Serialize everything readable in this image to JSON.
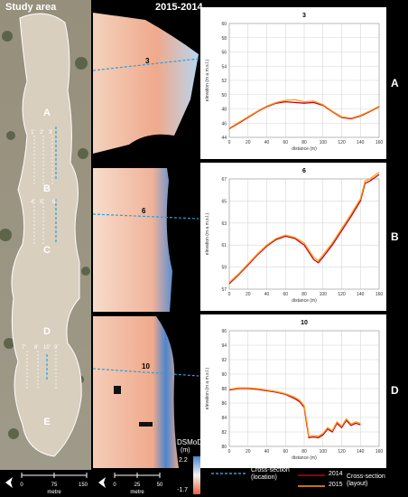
{
  "header": {
    "study_area": "Study area",
    "period": "2015-2014"
  },
  "study_area_labels": {
    "zones": [
      "A",
      "B",
      "C",
      "D",
      "E"
    ],
    "section_ids_b": [
      "1'",
      "2'",
      "3'"
    ],
    "section_ids_c": [
      "4'",
      "5'",
      "6'"
    ],
    "section_ids_d": [
      "7'",
      "8'",
      "10'",
      "9'"
    ]
  },
  "map_labels": {
    "sec3": "3",
    "sec6": "6",
    "sec10": "10"
  },
  "colors": {
    "line_2014": "#c0001a",
    "line_2015": "#ff9c1a",
    "cross_section": "#2aa0d8",
    "dsm_high": "#d6e6f5",
    "dsm_low": "#e8603a"
  },
  "panels": [
    {
      "letter": "A"
    },
    {
      "letter": "B"
    },
    {
      "letter": "D"
    }
  ],
  "chart_data": [
    {
      "type": "line",
      "title": "3",
      "xlabel": "distance (m)",
      "ylabel": "elevation (m a.m.s.l.)",
      "xlim": [
        0,
        160
      ],
      "ylim": [
        44,
        60
      ],
      "xticks": [
        0,
        20,
        40,
        60,
        80,
        100,
        120,
        140,
        160
      ],
      "yticks": [
        44,
        46,
        48,
        50,
        52,
        54,
        56,
        58,
        60
      ],
      "x": [
        0,
        10,
        20,
        30,
        40,
        50,
        60,
        70,
        80,
        90,
        100,
        110,
        120,
        130,
        140,
        150,
        160
      ],
      "series": [
        {
          "name": "2014",
          "values": [
            45.2,
            46.0,
            46.8,
            47.6,
            48.3,
            48.8,
            49.0,
            48.9,
            48.8,
            48.9,
            48.5,
            47.6,
            46.8,
            46.6,
            47.0,
            47.6,
            48.3
          ]
        },
        {
          "name": "2015",
          "values": [
            45.3,
            46.1,
            46.9,
            47.7,
            48.4,
            48.9,
            49.2,
            49.3,
            49.0,
            49.1,
            48.6,
            47.7,
            46.9,
            46.7,
            47.1,
            47.7,
            48.4
          ]
        }
      ]
    },
    {
      "type": "line",
      "title": "6",
      "xlabel": "distance (m)",
      "ylabel": "elevation (m a.m.s.l.)",
      "xlim": [
        0,
        160
      ],
      "ylim": [
        57,
        67
      ],
      "xticks": [
        0,
        20,
        40,
        60,
        80,
        100,
        120,
        140,
        160
      ],
      "yticks": [
        57,
        59,
        61,
        63,
        65,
        67
      ],
      "x": [
        0,
        10,
        20,
        30,
        40,
        50,
        60,
        70,
        80,
        90,
        95,
        100,
        110,
        120,
        130,
        140,
        145,
        150,
        160
      ],
      "series": [
        {
          "name": "2014",
          "values": [
            57.5,
            58.3,
            59.2,
            60.1,
            60.9,
            61.5,
            61.8,
            61.6,
            61.0,
            59.7,
            59.4,
            59.9,
            61.0,
            62.3,
            63.6,
            65.0,
            66.6,
            66.8,
            67.4
          ]
        },
        {
          "name": "2015",
          "values": [
            57.6,
            58.4,
            59.3,
            60.2,
            61.0,
            61.6,
            61.9,
            61.7,
            61.2,
            59.9,
            59.6,
            60.1,
            61.2,
            62.5,
            63.8,
            65.2,
            66.8,
            67.0,
            67.6
          ]
        }
      ]
    },
    {
      "type": "line",
      "title": "10",
      "xlabel": "distance (m)",
      "ylabel": "elevation (m a.m.s.l.)",
      "xlim": [
        0,
        160
      ],
      "ylim": [
        80,
        96
      ],
      "xticks": [
        0,
        20,
        40,
        60,
        80,
        100,
        120,
        140,
        160
      ],
      "yticks": [
        80,
        82,
        84,
        86,
        88,
        90,
        92,
        94,
        96
      ],
      "x": [
        0,
        10,
        20,
        30,
        40,
        50,
        60,
        70,
        75,
        80,
        83,
        85,
        90,
        95,
        100,
        105,
        110,
        115,
        120,
        125,
        130,
        135,
        140
      ],
      "series": [
        {
          "name": "2014",
          "values": [
            87.8,
            88.0,
            88.0,
            87.9,
            87.7,
            87.5,
            87.2,
            86.6,
            86.2,
            85.4,
            82.8,
            81.2,
            81.3,
            81.2,
            81.6,
            82.4,
            82.0,
            83.2,
            82.6,
            83.6,
            82.9,
            83.2,
            83.0
          ]
        },
        {
          "name": "2015",
          "values": [
            87.9,
            88.1,
            88.1,
            88.0,
            87.8,
            87.6,
            87.3,
            86.8,
            86.4,
            85.6,
            83.2,
            81.4,
            81.5,
            81.4,
            81.8,
            82.6,
            82.2,
            83.4,
            82.8,
            83.8,
            83.1,
            83.4,
            83.2
          ]
        }
      ]
    }
  ],
  "legend": {
    "dsmod_title": "DSMoD",
    "dsmod_unit": "(m)",
    "dsmod_max": "2.2",
    "dsmod_min": "-1.7",
    "cross_section_location": "Cross-section\n(location)",
    "label_2014": "2014",
    "label_2015": "2015",
    "cross_section_layout": "Cross-section\n(layout)"
  },
  "scalebars": {
    "left_ticks": [
      "0",
      "75",
      "150"
    ],
    "left_unit": "metre",
    "right_ticks": [
      "0",
      "25",
      "50"
    ],
    "right_unit": "metre"
  }
}
